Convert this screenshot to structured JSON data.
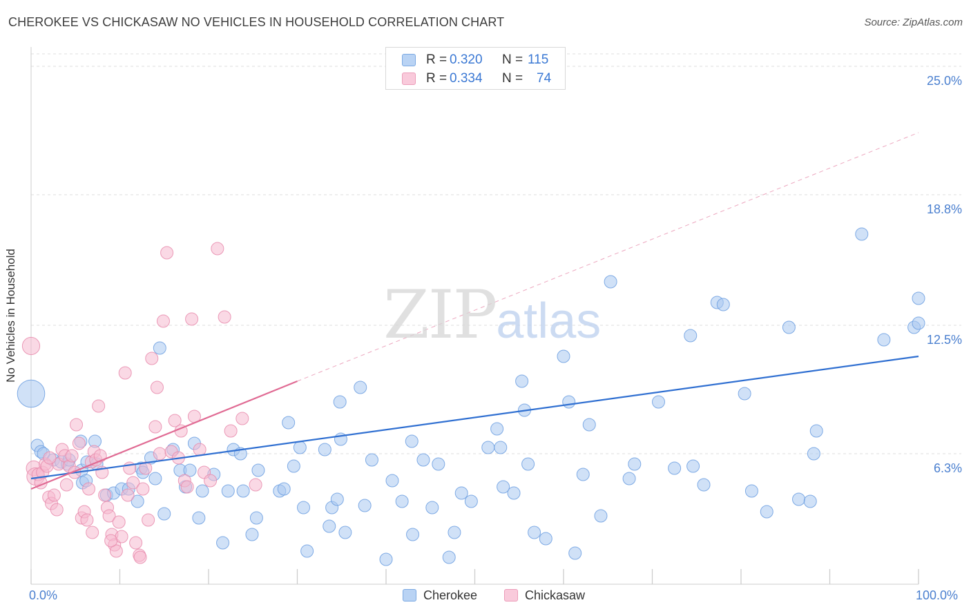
{
  "title": "CHEROKEE VS CHICKASAW NO VEHICLES IN HOUSEHOLD CORRELATION CHART",
  "source": "Source: ZipAtlas.com",
  "watermark": {
    "zip": "ZIP",
    "atlas": "atlas"
  },
  "legend": {
    "rows": [
      {
        "r_label": "R =",
        "r_value": "0.320",
        "n_label": "N =",
        "n_value": "115"
      },
      {
        "r_label": "R =",
        "r_value": "0.334",
        "n_label": "N =",
        "n_value": "74"
      }
    ],
    "bottom": [
      "Cherokee",
      "Chickasaw"
    ]
  },
  "colors": {
    "cherokee_fill": "#a9c8f0",
    "cherokee_stroke": "#6b9ee0",
    "cherokee_line": "#2f6fd1",
    "chickasaw_fill": "#f6b9cf",
    "chickasaw_stroke": "#e88aab",
    "chickasaw_line": "#e06a93",
    "tick_label": "#4a7fcf",
    "grid": "#dddddd"
  },
  "chart_data": {
    "type": "scatter",
    "title": "CHEROKEE VS CHICKASAW NO VEHICLES IN HOUSEHOLD CORRELATION CHART",
    "xlabel": "",
    "ylabel": "No Vehicles in Household",
    "xlim": [
      0,
      100
    ],
    "ylim": [
      0,
      25
    ],
    "x_tick_labels": [
      "0.0%",
      "100.0%"
    ],
    "y_ticks": [
      6.3,
      12.5,
      18.8,
      25.0
    ],
    "y_tick_labels": [
      "6.3%",
      "12.5%",
      "18.8%",
      "25.0%"
    ],
    "grid": true,
    "legend_placement": "top-center",
    "series": [
      {
        "name": "Cherokee",
        "r": 0.32,
        "n": 115,
        "trend": {
          "x0": 0,
          "y0": 5.1,
          "x1": 100,
          "y1": 11.0
        },
        "points": [
          [
            0,
            9.2,
            2.2
          ],
          [
            0.7,
            6.7,
            1
          ],
          [
            1.1,
            6.4,
            1
          ],
          [
            1.4,
            6.3,
            1
          ],
          [
            2.5,
            6.0,
            1
          ],
          [
            3.4,
            5.9,
            1
          ],
          [
            4.1,
            5.8,
            1
          ],
          [
            4.3,
            6.0,
            1
          ],
          [
            5.6,
            6.9,
            1
          ],
          [
            5.7,
            5.5,
            1
          ],
          [
            5.8,
            4.9,
            1
          ],
          [
            6.2,
            5.0,
            1
          ],
          [
            6.3,
            5.9,
            1
          ],
          [
            7.2,
            6.9,
            1
          ],
          [
            7.4,
            5.8,
            1
          ],
          [
            8.5,
            4.3,
            1
          ],
          [
            9.3,
            4.4,
            1
          ],
          [
            10.2,
            4.6,
            1
          ],
          [
            11.0,
            4.6,
            1
          ],
          [
            12.0,
            4.0,
            1
          ],
          [
            12.4,
            5.6,
            1
          ],
          [
            12.6,
            5.4,
            1
          ],
          [
            13.5,
            6.1,
            1
          ],
          [
            14.0,
            5.1,
            1
          ],
          [
            15.0,
            3.4,
            1
          ],
          [
            14.5,
            11.4,
            1
          ],
          [
            16.0,
            6.5,
            1
          ],
          [
            16.8,
            5.5,
            1
          ],
          [
            17.4,
            4.7,
            1
          ],
          [
            17.9,
            5.5,
            1
          ],
          [
            18.4,
            6.8,
            1
          ],
          [
            18.9,
            3.2,
            1
          ],
          [
            19.3,
            4.5,
            1
          ],
          [
            20.6,
            5.3,
            1
          ],
          [
            21.6,
            2.0,
            1
          ],
          [
            22.2,
            4.5,
            1
          ],
          [
            22.8,
            6.5,
            1
          ],
          [
            23.6,
            6.3,
            1
          ],
          [
            23.9,
            4.5,
            1
          ],
          [
            24.9,
            2.4,
            1
          ],
          [
            25.4,
            3.2,
            1
          ],
          [
            25.6,
            5.5,
            1
          ],
          [
            28.0,
            4.5,
            1
          ],
          [
            28.5,
            4.6,
            1
          ],
          [
            29.0,
            7.8,
            1
          ],
          [
            29.6,
            5.7,
            1
          ],
          [
            30.3,
            6.6,
            1
          ],
          [
            30.7,
            3.7,
            1
          ],
          [
            31.1,
            1.6,
            1
          ],
          [
            33.1,
            6.5,
            1
          ],
          [
            33.6,
            2.8,
            1
          ],
          [
            33.9,
            3.7,
            1
          ],
          [
            34.5,
            4.1,
            1
          ],
          [
            34.8,
            8.8,
            1
          ],
          [
            34.9,
            7.0,
            1
          ],
          [
            35.4,
            2.5,
            1
          ],
          [
            37.1,
            9.5,
            1
          ],
          [
            37.6,
            3.8,
            1
          ],
          [
            38.4,
            6.0,
            1
          ],
          [
            40.0,
            1.2,
            1
          ],
          [
            40.7,
            5.0,
            1
          ],
          [
            41.8,
            4.0,
            1
          ],
          [
            42.9,
            6.9,
            1
          ],
          [
            43.0,
            2.4,
            1
          ],
          [
            44.2,
            6.0,
            1
          ],
          [
            45.2,
            3.7,
            1
          ],
          [
            45.9,
            5.8,
            1
          ],
          [
            47.1,
            1.3,
            1
          ],
          [
            47.7,
            2.5,
            1
          ],
          [
            48.5,
            4.4,
            1
          ],
          [
            49.6,
            4.0,
            1
          ],
          [
            51.5,
            6.6,
            1
          ],
          [
            52.5,
            7.5,
            1
          ],
          [
            52.9,
            6.6,
            1
          ],
          [
            53.2,
            4.7,
            1
          ],
          [
            54.4,
            4.4,
            1
          ],
          [
            55.3,
            9.8,
            1
          ],
          [
            55.6,
            8.4,
            1
          ],
          [
            56.0,
            5.8,
            1
          ],
          [
            56.7,
            2.5,
            1
          ],
          [
            58.0,
            2.2,
            1
          ],
          [
            60.6,
            8.8,
            1
          ],
          [
            60.0,
            11.0,
            1
          ],
          [
            61.3,
            1.5,
            1
          ],
          [
            62.2,
            5.3,
            1
          ],
          [
            62.9,
            7.7,
            1
          ],
          [
            64.2,
            3.3,
            1
          ],
          [
            65.3,
            14.6,
            1
          ],
          [
            67.4,
            5.1,
            1
          ],
          [
            68.0,
            5.8,
            1
          ],
          [
            70.7,
            8.8,
            1
          ],
          [
            72.5,
            5.6,
            1
          ],
          [
            74.3,
            12.0,
            1
          ],
          [
            74.6,
            5.7,
            1
          ],
          [
            75.8,
            4.8,
            1
          ],
          [
            77.3,
            13.6,
            1
          ],
          [
            78.0,
            13.5,
            1
          ],
          [
            80.4,
            9.2,
            1
          ],
          [
            81.2,
            4.5,
            1
          ],
          [
            82.9,
            3.5,
            1
          ],
          [
            85.4,
            12.4,
            1
          ],
          [
            86.5,
            4.1,
            1
          ],
          [
            87.8,
            4.0,
            1
          ],
          [
            88.2,
            6.3,
            1
          ],
          [
            88.5,
            7.4,
            1
          ],
          [
            93.6,
            16.9,
            1
          ],
          [
            96.1,
            11.8,
            1
          ],
          [
            99.5,
            12.4,
            1
          ],
          [
            102.0,
            12.6,
            1
          ],
          [
            101.9,
            13.8,
            1
          ]
        ]
      },
      {
        "name": "Chickasaw",
        "r": 0.334,
        "n": 74,
        "trend": {
          "x0": 0,
          "y0": 4.6,
          "x1": 30,
          "y1": 9.8
        },
        "dashed_extension": {
          "x0": 30,
          "y0": 9.8,
          "x1": 100,
          "y1": 21.8
        },
        "points": [
          [
            0,
            11.5,
            1.4
          ],
          [
            0.3,
            5.6,
            1.2
          ],
          [
            0.5,
            5.2,
            1.4
          ],
          [
            0.8,
            5.3,
            1
          ],
          [
            1.1,
            4.9,
            1
          ],
          [
            1.3,
            5.4,
            1
          ],
          [
            1.6,
            5.8,
            1
          ],
          [
            1.8,
            5.7,
            1
          ],
          [
            2.0,
            4.2,
            1
          ],
          [
            2.3,
            3.9,
            1
          ],
          [
            2.6,
            4.3,
            1
          ],
          [
            2.9,
            3.6,
            1
          ],
          [
            3.1,
            5.8,
            1
          ],
          [
            3.5,
            6.5,
            1
          ],
          [
            3.8,
            6.2,
            1
          ],
          [
            4.0,
            4.8,
            1
          ],
          [
            4.3,
            5.7,
            1
          ],
          [
            4.6,
            6.2,
            1
          ],
          [
            4.9,
            5.4,
            1
          ],
          [
            5.1,
            7.7,
            1
          ],
          [
            5.4,
            6.8,
            1
          ],
          [
            5.7,
            3.2,
            1
          ],
          [
            6.0,
            3.5,
            1
          ],
          [
            6.3,
            3.1,
            1
          ],
          [
            6.5,
            4.6,
            1
          ],
          [
            6.8,
            5.9,
            1
          ],
          [
            7.1,
            6.4,
            1
          ],
          [
            7.3,
            6.0,
            1
          ],
          [
            7.6,
            8.6,
            1
          ],
          [
            7.8,
            6.2,
            1
          ],
          [
            8.0,
            5.4,
            1
          ],
          [
            8.3,
            4.3,
            1
          ],
          [
            8.6,
            3.7,
            1
          ],
          [
            8.8,
            3.3,
            1
          ],
          [
            9.1,
            2.4,
            1
          ],
          [
            9.4,
            1.9,
            1
          ],
          [
            9.6,
            1.6,
            1
          ],
          [
            9.9,
            3.0,
            1
          ],
          [
            10.2,
            2.3,
            1
          ],
          [
            10.6,
            10.2,
            1
          ],
          [
            10.9,
            4.3,
            1
          ],
          [
            11.1,
            5.6,
            1
          ],
          [
            11.5,
            4.9,
            1
          ],
          [
            11.8,
            2.0,
            1
          ],
          [
            12.2,
            1.4,
            1
          ],
          [
            12.6,
            4.6,
            1
          ],
          [
            12.9,
            5.6,
            1
          ],
          [
            13.2,
            3.1,
            1
          ],
          [
            13.6,
            10.9,
            1
          ],
          [
            14.0,
            7.6,
            1
          ],
          [
            14.2,
            9.5,
            1
          ],
          [
            14.5,
            6.3,
            1
          ],
          [
            14.9,
            12.7,
            1
          ],
          [
            15.3,
            16.0,
            1
          ],
          [
            15.8,
            6.4,
            1
          ],
          [
            16.2,
            7.9,
            1
          ],
          [
            16.6,
            6.1,
            1
          ],
          [
            16.9,
            7.4,
            1
          ],
          [
            17.3,
            5.0,
            1
          ],
          [
            17.6,
            4.7,
            1
          ],
          [
            18.1,
            12.8,
            1
          ],
          [
            18.4,
            8.1,
            1
          ],
          [
            19.0,
            6.5,
            1
          ],
          [
            19.5,
            5.4,
            1
          ],
          [
            20.2,
            5.0,
            1
          ],
          [
            21.0,
            16.2,
            1
          ],
          [
            21.8,
            12.9,
            1
          ],
          [
            22.5,
            7.4,
            1
          ],
          [
            23.8,
            8.0,
            1
          ],
          [
            25.3,
            4.8,
            1
          ],
          [
            6.9,
            2.5,
            1
          ],
          [
            9.0,
            2.1,
            1
          ],
          [
            2.1,
            6.1,
            1
          ],
          [
            12.3,
            1.3,
            1
          ]
        ]
      }
    ]
  }
}
